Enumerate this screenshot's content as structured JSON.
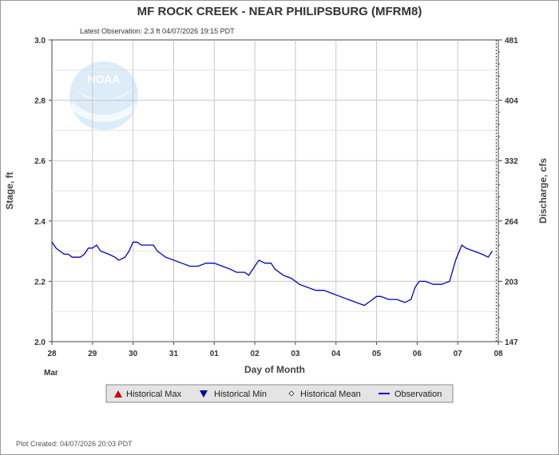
{
  "header": {
    "title": "MF ROCK CREEK - NEAR PHILIPSBURG  (MFRM8)",
    "latest_observation": "Latest Observation: 2.3 ft 04/07/2026 19:15 PDT"
  },
  "logo": {
    "text": "NOAA"
  },
  "footer": {
    "plot_created": "Plot Created: 04/07/2026 20:03 PDT"
  },
  "colors": {
    "observation": "#0000cc",
    "grid": "#c8c8c8",
    "hist_max": "#cc0000",
    "hist_min": "#000099"
  },
  "legend": {
    "items": [
      {
        "label": "Historical Max",
        "icon": "triangle-up-icon"
      },
      {
        "label": "Historical Min",
        "icon": "triangle-down-icon"
      },
      {
        "label": "Historical Mean",
        "icon": "diamond-icon"
      },
      {
        "label": "Observation",
        "icon": "line-icon"
      }
    ]
  },
  "chart_data": {
    "type": "line",
    "xlabel": "Day of Month",
    "ylabel": "Stage, ft",
    "y2label": "Discharge, cfs",
    "month_label": "Mar",
    "xlim": [
      0,
      11
    ],
    "x_ticks": [
      {
        "x": 0,
        "label": "28"
      },
      {
        "x": 1,
        "label": "29"
      },
      {
        "x": 2,
        "label": "30"
      },
      {
        "x": 3,
        "label": "31"
      },
      {
        "x": 4,
        "label": "01"
      },
      {
        "x": 5,
        "label": "02"
      },
      {
        "x": 6,
        "label": "03"
      },
      {
        "x": 7,
        "label": "04"
      },
      {
        "x": 8,
        "label": "05"
      },
      {
        "x": 9,
        "label": "06"
      },
      {
        "x": 10,
        "label": "07"
      },
      {
        "x": 11,
        "label": "08"
      }
    ],
    "ylim": [
      2.0,
      3.0
    ],
    "y_ticks": [
      "2.0",
      "2.2",
      "2.4",
      "2.6",
      "2.8",
      "3.0"
    ],
    "y2_ticks": [
      {
        "stage": 2.0,
        "label": "147"
      },
      {
        "stage": 2.2,
        "label": "203"
      },
      {
        "stage": 2.4,
        "label": "264"
      },
      {
        "stage": 2.6,
        "label": "332"
      },
      {
        "stage": 2.8,
        "label": "404"
      },
      {
        "stage": 3.0,
        "label": "481"
      }
    ],
    "grid": true,
    "series": [
      {
        "name": "Observation",
        "points": [
          [
            0.0,
            2.33
          ],
          [
            0.1,
            2.31
          ],
          [
            0.2,
            2.3
          ],
          [
            0.3,
            2.29
          ],
          [
            0.4,
            2.29
          ],
          [
            0.5,
            2.28
          ],
          [
            0.6,
            2.28
          ],
          [
            0.7,
            2.28
          ],
          [
            0.8,
            2.29
          ],
          [
            0.9,
            2.31
          ],
          [
            1.0,
            2.31
          ],
          [
            1.1,
            2.32
          ],
          [
            1.2,
            2.3
          ],
          [
            1.4,
            2.29
          ],
          [
            1.55,
            2.28
          ],
          [
            1.65,
            2.27
          ],
          [
            1.8,
            2.28
          ],
          [
            1.9,
            2.3
          ],
          [
            2.0,
            2.33
          ],
          [
            2.1,
            2.33
          ],
          [
            2.2,
            2.32
          ],
          [
            2.35,
            2.32
          ],
          [
            2.5,
            2.32
          ],
          [
            2.6,
            2.3
          ],
          [
            2.8,
            2.28
          ],
          [
            3.0,
            2.27
          ],
          [
            3.2,
            2.26
          ],
          [
            3.4,
            2.25
          ],
          [
            3.6,
            2.25
          ],
          [
            3.8,
            2.26
          ],
          [
            4.0,
            2.26
          ],
          [
            4.2,
            2.25
          ],
          [
            4.4,
            2.24
          ],
          [
            4.55,
            2.23
          ],
          [
            4.75,
            2.23
          ],
          [
            4.85,
            2.22
          ],
          [
            5.0,
            2.25
          ],
          [
            5.1,
            2.27
          ],
          [
            5.25,
            2.26
          ],
          [
            5.4,
            2.26
          ],
          [
            5.5,
            2.24
          ],
          [
            5.7,
            2.22
          ],
          [
            5.9,
            2.21
          ],
          [
            6.1,
            2.19
          ],
          [
            6.3,
            2.18
          ],
          [
            6.5,
            2.17
          ],
          [
            6.7,
            2.17
          ],
          [
            6.9,
            2.16
          ],
          [
            7.1,
            2.15
          ],
          [
            7.3,
            2.14
          ],
          [
            7.5,
            2.13
          ],
          [
            7.7,
            2.12
          ],
          [
            7.8,
            2.13
          ],
          [
            7.9,
            2.14
          ],
          [
            8.0,
            2.15
          ],
          [
            8.1,
            2.15
          ],
          [
            8.3,
            2.14
          ],
          [
            8.5,
            2.14
          ],
          [
            8.7,
            2.13
          ],
          [
            8.85,
            2.14
          ],
          [
            8.95,
            2.18
          ],
          [
            9.05,
            2.2
          ],
          [
            9.2,
            2.2
          ],
          [
            9.4,
            2.19
          ],
          [
            9.6,
            2.19
          ],
          [
            9.8,
            2.2
          ],
          [
            9.95,
            2.27
          ],
          [
            10.1,
            2.32
          ],
          [
            10.2,
            2.31
          ],
          [
            10.4,
            2.3
          ],
          [
            10.6,
            2.29
          ],
          [
            10.75,
            2.28
          ],
          [
            10.85,
            2.3
          ]
        ]
      }
    ]
  }
}
